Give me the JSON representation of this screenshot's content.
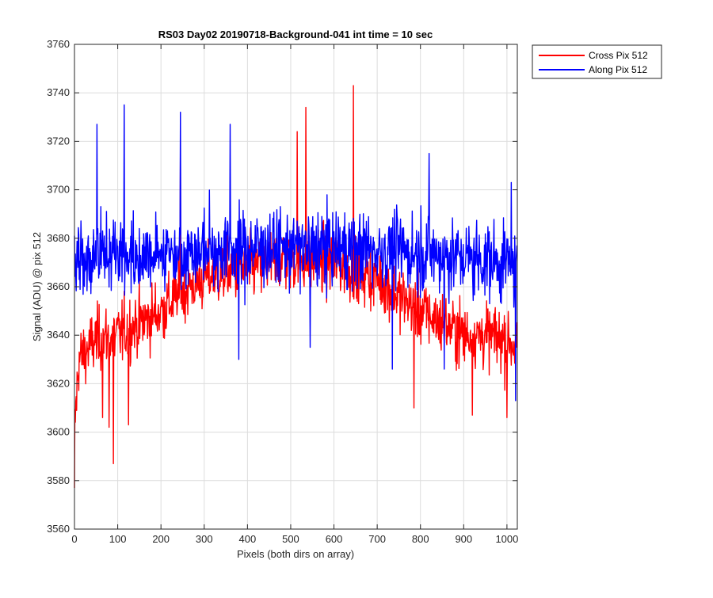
{
  "chart_data": {
    "type": "line",
    "title": "RS03 Day02 20190718-Background-041 int time = 10 sec",
    "xlabel": "Pixels (both dirs on array)",
    "ylabel": "Signal (ADU) @ pix 512",
    "xlim": [
      0,
      1024
    ],
    "ylim": [
      3560,
      3760
    ],
    "xticks": [
      0,
      100,
      200,
      300,
      400,
      500,
      600,
      700,
      800,
      900,
      1000
    ],
    "yticks": [
      3560,
      3580,
      3600,
      3620,
      3640,
      3660,
      3680,
      3700,
      3720,
      3740,
      3760
    ],
    "grid": true,
    "legend_position": "top-right, outside",
    "series": [
      {
        "name": "Cross Pix 512",
        "color": "#ff0000",
        "noise_amplitude": 11,
        "profile": [
          {
            "x": 0,
            "y": 3600
          },
          {
            "x": 10,
            "y": 3630
          },
          {
            "x": 50,
            "y": 3638
          },
          {
            "x": 100,
            "y": 3640
          },
          {
            "x": 150,
            "y": 3645
          },
          {
            "x": 200,
            "y": 3650
          },
          {
            "x": 250,
            "y": 3658
          },
          {
            "x": 300,
            "y": 3664
          },
          {
            "x": 400,
            "y": 3668
          },
          {
            "x": 500,
            "y": 3672
          },
          {
            "x": 600,
            "y": 3670
          },
          {
            "x": 700,
            "y": 3664
          },
          {
            "x": 750,
            "y": 3656
          },
          {
            "x": 800,
            "y": 3650
          },
          {
            "x": 850,
            "y": 3645
          },
          {
            "x": 900,
            "y": 3640
          },
          {
            "x": 950,
            "y": 3640
          },
          {
            "x": 1000,
            "y": 3638
          },
          {
            "x": 1023,
            "y": 3636
          }
        ],
        "peaks": [
          {
            "x": 0,
            "y": 3577
          },
          {
            "x": 90,
            "y": 3587
          },
          {
            "x": 80,
            "y": 3602
          },
          {
            "x": 125,
            "y": 3603
          },
          {
            "x": 645,
            "y": 3743
          },
          {
            "x": 535,
            "y": 3734
          },
          {
            "x": 515,
            "y": 3724
          },
          {
            "x": 245,
            "y": 3718
          },
          {
            "x": 785,
            "y": 3610
          },
          {
            "x": 920,
            "y": 3607
          },
          {
            "x": 1000,
            "y": 3606
          },
          {
            "x": 65,
            "y": 3606
          }
        ]
      },
      {
        "name": "Along Pix 512",
        "color": "#0000ff",
        "noise_amplitude": 13,
        "profile": [
          {
            "x": 0,
            "y": 3672
          },
          {
            "x": 100,
            "y": 3673
          },
          {
            "x": 200,
            "y": 3674
          },
          {
            "x": 300,
            "y": 3675
          },
          {
            "x": 400,
            "y": 3676
          },
          {
            "x": 500,
            "y": 3676
          },
          {
            "x": 600,
            "y": 3676
          },
          {
            "x": 700,
            "y": 3675
          },
          {
            "x": 800,
            "y": 3674
          },
          {
            "x": 900,
            "y": 3672
          },
          {
            "x": 1000,
            "y": 3670
          },
          {
            "x": 1023,
            "y": 3665
          }
        ],
        "peaks": [
          {
            "x": 115,
            "y": 3735
          },
          {
            "x": 245,
            "y": 3732
          },
          {
            "x": 820,
            "y": 3715
          },
          {
            "x": 52,
            "y": 3727
          },
          {
            "x": 360,
            "y": 3727
          },
          {
            "x": 380,
            "y": 3630
          },
          {
            "x": 545,
            "y": 3635
          },
          {
            "x": 735,
            "y": 3626
          },
          {
            "x": 855,
            "y": 3626
          },
          {
            "x": 1020,
            "y": 3613
          },
          {
            "x": 1010,
            "y": 3703
          }
        ]
      }
    ]
  }
}
